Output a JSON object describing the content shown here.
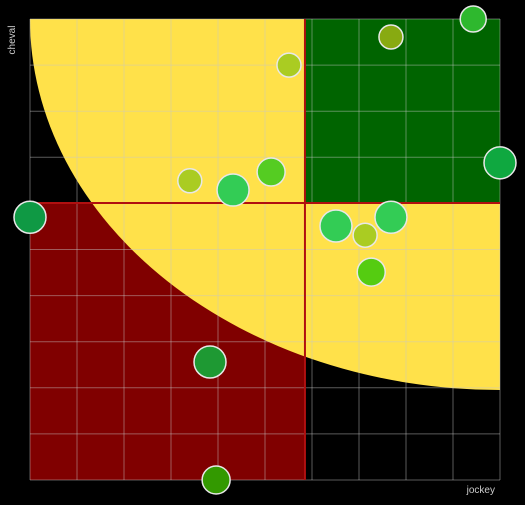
{
  "chart_data": {
    "type": "scatter",
    "x_label": "jockey",
    "y_label": "cheval",
    "x": [
      94.3,
      76.8,
      55.1,
      100,
      34.0,
      43.2,
      51.3,
      0,
      65.1,
      76.8,
      71.3,
      72.6,
      38.3,
      39.6
    ],
    "values": [
      100,
      96.1,
      90.0,
      68.8,
      64.9,
      62.9,
      66.8,
      57.0,
      55.1,
      57.0,
      53.1,
      45.1,
      25.6,
      0
    ],
    "sizes": [
      13,
      12,
      12,
      16,
      12,
      16,
      14,
      16,
      16,
      16,
      12,
      14,
      16,
      14
    ],
    "colors": [
      "#2eb82e",
      "#88aa11",
      "#aacc22",
      "#0fa840",
      "#aacc22",
      "#33cc55",
      "#55cc22",
      "#0f9944",
      "#33cc55",
      "#33cc55",
      "#aacc22",
      "#55cc11",
      "#1e9933",
      "#339900"
    ],
    "xlim": [
      0,
      100
    ],
    "ylim": [
      0,
      100
    ],
    "xticks": [
      0,
      10,
      20,
      30,
      40,
      50,
      60,
      70,
      80,
      90,
      100
    ],
    "yticks": [
      0,
      10,
      20,
      30,
      40,
      50,
      60,
      70,
      80,
      90,
      100
    ],
    "x_split": 58.5,
    "y_split": 60.1,
    "zone_colors": {
      "favourable": "#ffe14a",
      "good": "#006400",
      "bad": "#800000",
      "divider": "#b01010"
    },
    "grid": true
  }
}
